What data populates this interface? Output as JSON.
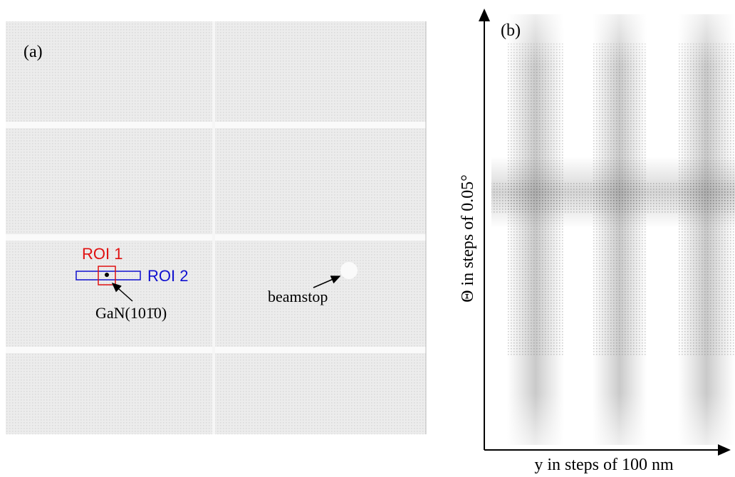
{
  "panel_a": {
    "label": "(a)",
    "roi1": "ROI 1",
    "roi2": "ROI 2",
    "peak": "GaN(101̄0)",
    "beamstop": "beamstop"
  },
  "panel_b": {
    "label": "(b)",
    "y_axis_label": "Θ in steps of 0.05°",
    "x_axis_label": "y in steps of 100 nm"
  }
}
